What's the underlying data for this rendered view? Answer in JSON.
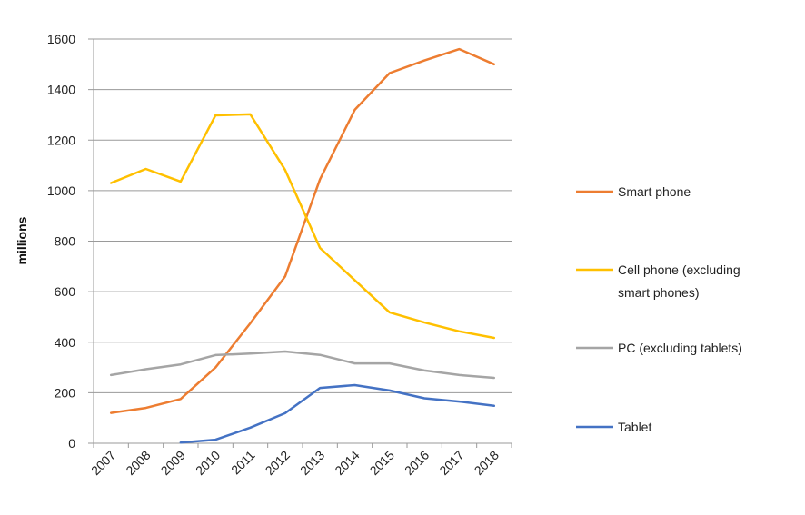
{
  "chart_data": {
    "type": "line",
    "title": "",
    "xlabel": "",
    "ylabel": "millions",
    "ylim": [
      0,
      1600
    ],
    "yticks": [
      "0",
      "200",
      "400",
      "600",
      "800",
      "1000",
      "1200",
      "1400",
      "1600"
    ],
    "ytick_values": [
      0,
      200,
      400,
      600,
      800,
      1000,
      1200,
      1400,
      1600
    ],
    "grid": true,
    "legend_position": "right",
    "categories": [
      "2007",
      "2008",
      "2009",
      "2010",
      "2011",
      "2012",
      "2013",
      "2014",
      "2015",
      "2016",
      "2017",
      "2018"
    ],
    "series": [
      {
        "name": "Smart phone",
        "legend_lines": [
          "Smart phone"
        ],
        "color": "#ED7D31",
        "values": [
          120,
          140,
          175,
          300,
          475,
          660,
          1045,
          1320,
          1465,
          1515,
          1560,
          1500
        ]
      },
      {
        "name": "Cell phone (excluding smart phones)",
        "legend_lines": [
          "Cell phone (excluding",
          "smart phones)"
        ],
        "color": "#FFC000",
        "values": [
          1030,
          1086,
          1036,
          1298,
          1302,
          1082,
          773,
          645,
          518,
          478,
          443,
          417
        ]
      },
      {
        "name": "PC (excluding tablets)",
        "legend_lines": [
          "PC (excluding tablets)"
        ],
        "color": "#A5A5A5",
        "values": [
          270,
          293,
          312,
          349,
          355,
          363,
          350,
          316,
          316,
          288,
          270,
          259
        ]
      },
      {
        "name": "Tablet",
        "legend_lines": [
          "Tablet"
        ],
        "color": "#4472C4",
        "values": [
          null,
          null,
          3,
          14,
          62,
          119,
          219,
          230,
          209,
          178,
          165,
          148
        ]
      }
    ]
  }
}
